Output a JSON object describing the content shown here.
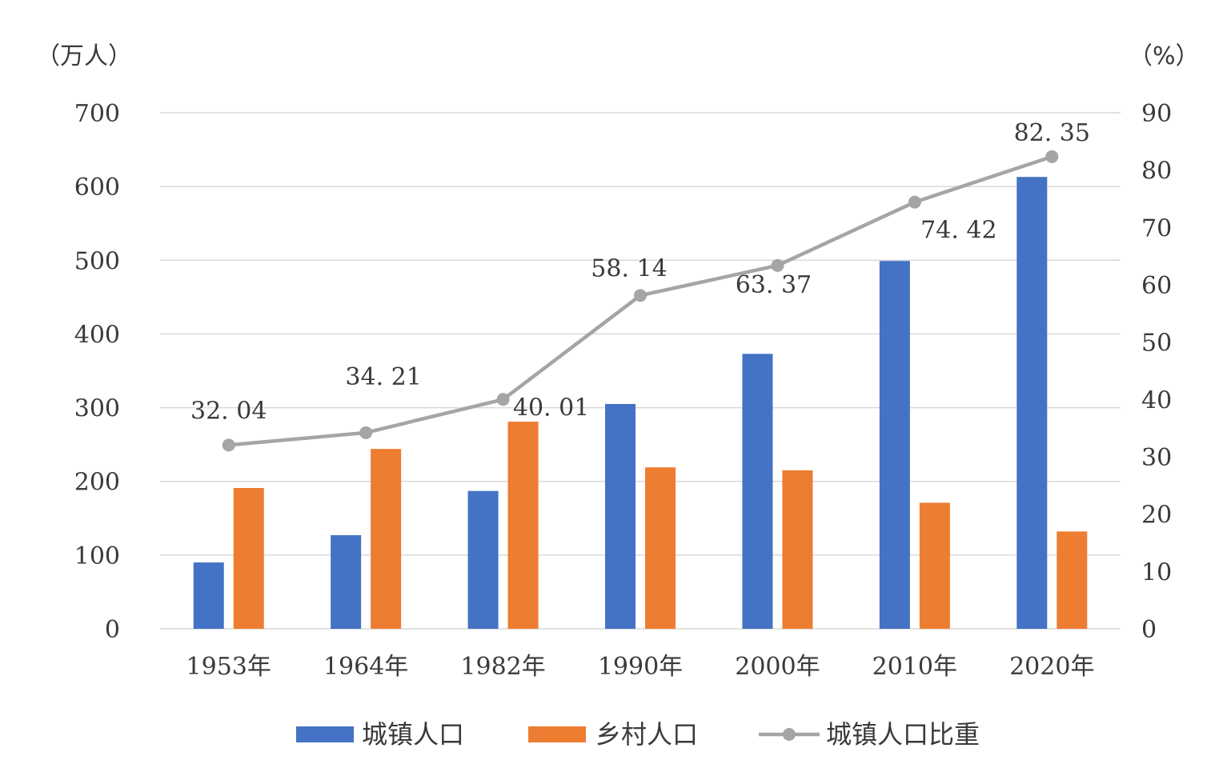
{
  "chart_data": {
    "type": "bar",
    "categories": [
      "1953年",
      "1964年",
      "1982年",
      "1990年",
      "2000年",
      "2010年",
      "2020年"
    ],
    "series": [
      {
        "name": "城镇人口",
        "type": "bar",
        "axis": "left",
        "values": [
          90,
          127,
          187,
          305,
          373,
          499,
          613
        ]
      },
      {
        "name": "乡村人口",
        "type": "bar",
        "axis": "left",
        "values": [
          191,
          244,
          281,
          219,
          215,
          171,
          132
        ]
      },
      {
        "name": "城镇人口比重",
        "type": "line",
        "axis": "right",
        "values": [
          32.04,
          34.21,
          40.01,
          58.14,
          63.37,
          74.42,
          82.35
        ]
      }
    ],
    "data_labels": [
      "32. 04",
      "34. 21",
      "40. 01",
      "58. 14",
      "63. 37",
      "74. 42",
      "82. 35"
    ],
    "y_left": {
      "unit": "（万人）",
      "ylim": [
        0,
        700
      ],
      "ticks": [
        "0",
        "100",
        "200",
        "300",
        "400",
        "500",
        "600",
        "700"
      ]
    },
    "y_right": {
      "unit": "（%）",
      "ylim": [
        0,
        90
      ],
      "ticks": [
        "0",
        "10",
        "20",
        "30",
        "40",
        "50",
        "60",
        "70",
        "80",
        "90"
      ]
    },
    "grid": true,
    "legend": "bottom",
    "colors": {
      "urban": "#4472c4",
      "rural": "#ed7d31",
      "ratio": "#a5a5a5",
      "grid": "#d9d9d9"
    }
  }
}
